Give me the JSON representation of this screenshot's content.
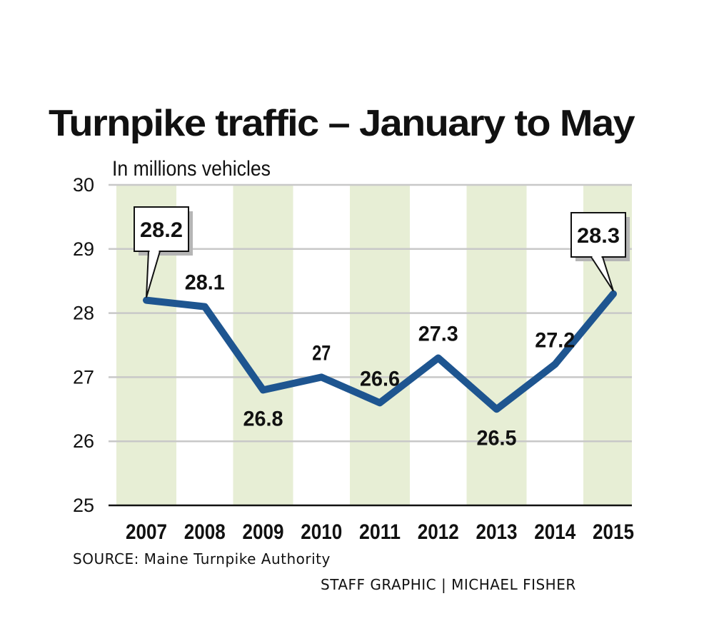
{
  "chart_data": {
    "type": "line",
    "title": "Turnpike traffic – January to May",
    "ylabel": "In millions vehicles",
    "xlabel": "",
    "categories": [
      "2007",
      "2008",
      "2009",
      "2010",
      "2011",
      "2012",
      "2013",
      "2014",
      "2015"
    ],
    "values": [
      28.2,
      28.1,
      26.8,
      27,
      26.6,
      27.3,
      26.5,
      27.2,
      28.3
    ],
    "value_labels": [
      "28.2",
      "28.1",
      "26.8",
      "27",
      "26.6",
      "27.3",
      "26.5",
      "27.2",
      "28.3"
    ],
    "callout_indices": [
      0,
      8
    ],
    "label_placement": [
      "callout",
      "above",
      "below",
      "above",
      "above",
      "above",
      "below",
      "above",
      "callout"
    ],
    "ylim": [
      25,
      30
    ],
    "yticks": [
      "25",
      "26",
      "27",
      "28",
      "29",
      "30"
    ],
    "grid": true,
    "line_color": "#1e5590",
    "band_color": "#e7eed5",
    "band_indices": [
      0,
      2,
      4,
      6,
      8
    ],
    "gridline_color": "#c8c8c8"
  },
  "source": "SOURCE: Maine Turnpike Authority",
  "credit": "STAFF GRAPHIC | MICHAEL FISHER"
}
